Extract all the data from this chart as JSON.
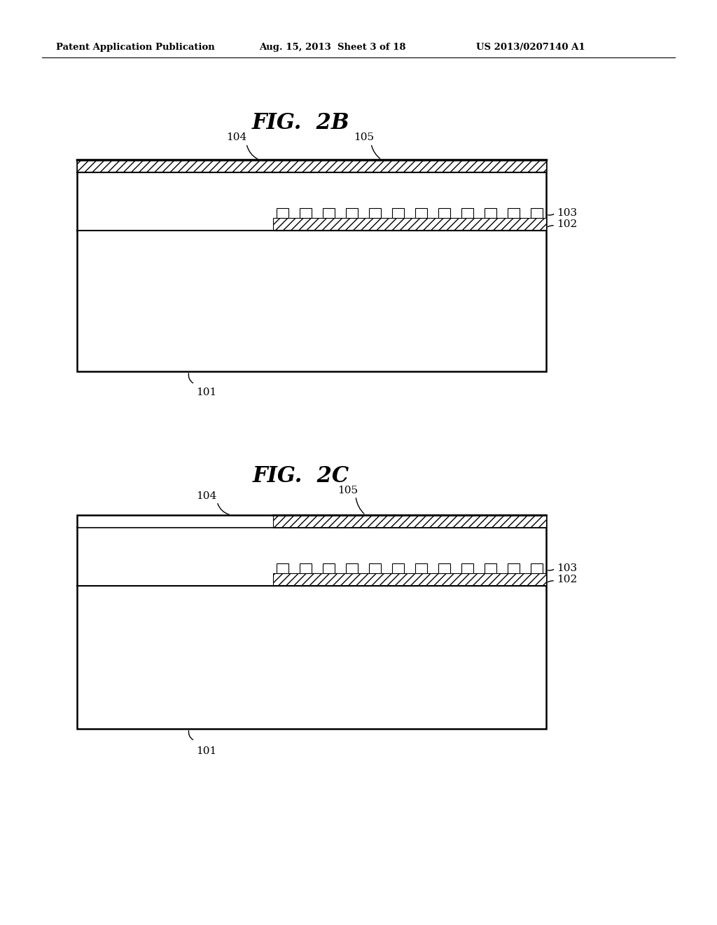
{
  "background_color": "#ffffff",
  "header_text": "Patent Application Publication",
  "header_date": "Aug. 15, 2013  Sheet 3 of 18",
  "header_patent": "US 2013/0207140 A1",
  "fig2b_title": "FIG.  2B",
  "fig2c_title": "FIG.  2C"
}
